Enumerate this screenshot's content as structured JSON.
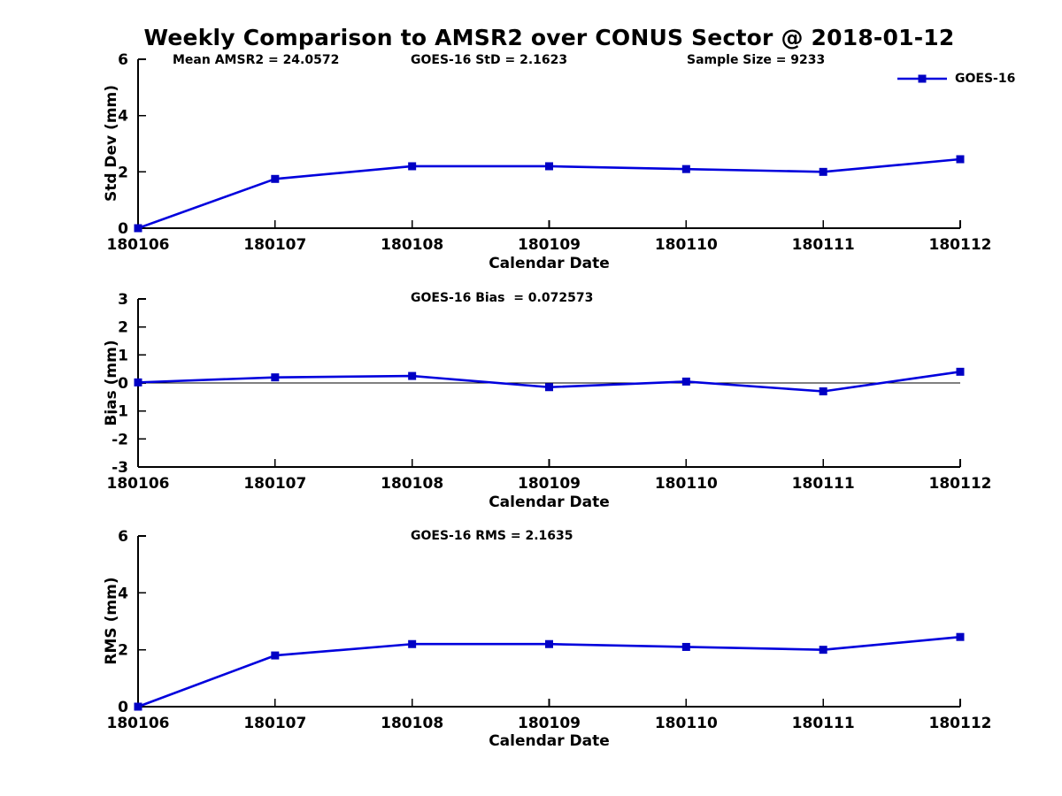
{
  "figure": {
    "title": "Weekly Comparison to AMSR2 over CONUS Sector @ 2018-01-12",
    "legend": {
      "label": "GOES-16"
    },
    "series_color": "#0000dd",
    "marker_color": "#0000c4",
    "axis_color": "#000000"
  },
  "chart_data": [
    {
      "type": "line",
      "ylabel": "Std Dev (mm)",
      "xlabel": "Calendar Date",
      "categories": [
        "180106",
        "180107",
        "180108",
        "180109",
        "180110",
        "180111",
        "180112"
      ],
      "series": [
        {
          "name": "GOES-16",
          "values": [
            0.0,
            1.75,
            2.2,
            2.2,
            2.1,
            2.0,
            2.45
          ],
          "marker": "square"
        }
      ],
      "ylim": [
        0,
        6
      ],
      "yticks": [
        0,
        2,
        4,
        6
      ],
      "grid": false,
      "zero_line": false,
      "legend_position": "top-right",
      "annotations": [
        "Mean AMSR2 = 24.0572",
        "GOES-16 StD = 2.1623",
        "Sample Size = 9233"
      ]
    },
    {
      "type": "line",
      "ylabel": "Bias (mm)",
      "xlabel": "Calendar Date",
      "categories": [
        "180106",
        "180107",
        "180108",
        "180109",
        "180110",
        "180111",
        "180112"
      ],
      "series": [
        {
          "name": "GOES-16",
          "values": [
            0.02,
            0.2,
            0.25,
            -0.15,
            0.05,
            -0.3,
            0.4
          ],
          "marker": "square"
        }
      ],
      "ylim": [
        -3,
        3
      ],
      "yticks": [
        -3,
        -2,
        -1,
        0,
        1,
        2,
        3
      ],
      "grid": false,
      "zero_line": true,
      "annotations": [
        "GOES-16 Bias  = 0.072573"
      ]
    },
    {
      "type": "line",
      "ylabel": "RMS (mm)",
      "xlabel": "Calendar Date",
      "categories": [
        "180106",
        "180107",
        "180108",
        "180109",
        "180110",
        "180111",
        "180112"
      ],
      "series": [
        {
          "name": "GOES-16",
          "values": [
            0.0,
            1.8,
            2.2,
            2.2,
            2.1,
            2.0,
            2.45
          ],
          "marker": "square"
        }
      ],
      "ylim": [
        0,
        6
      ],
      "yticks": [
        0,
        2,
        4,
        6
      ],
      "grid": false,
      "zero_line": false,
      "annotations": [
        "GOES-16 RMS = 2.1635"
      ]
    }
  ]
}
